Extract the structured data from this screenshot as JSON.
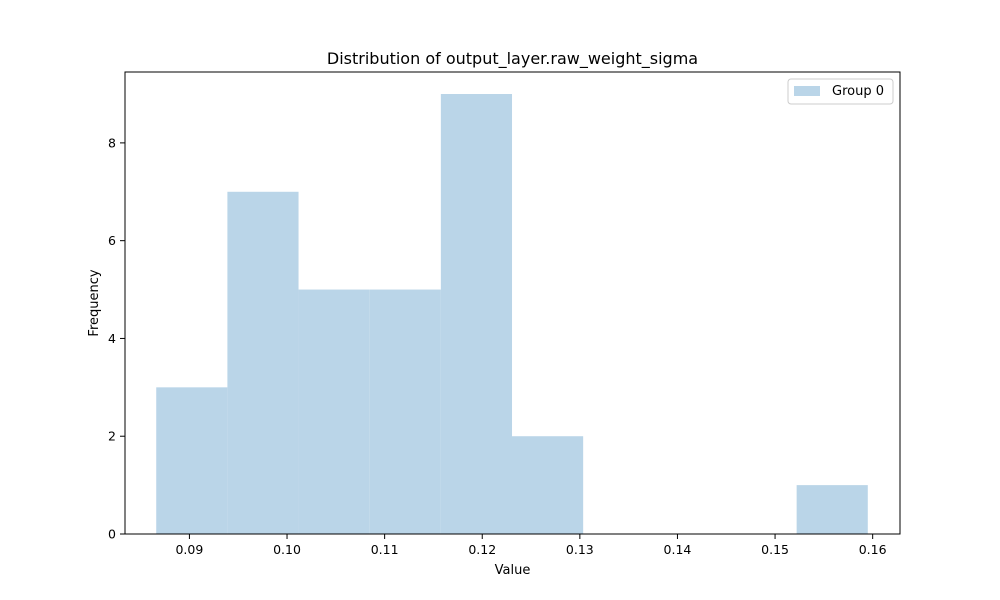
{
  "chart_data": {
    "type": "bar",
    "title": "Distribution of output_layer.raw_weight_sigma",
    "xlabel": "Value",
    "ylabel": "Frequency",
    "xlim": [
      0.0834,
      0.1628
    ],
    "ylim": [
      0,
      9.45
    ],
    "xticks": [
      0.09,
      0.1,
      0.11,
      0.12,
      0.13,
      0.14,
      0.15,
      0.16
    ],
    "xtick_labels": [
      "0.09",
      "0.10",
      "0.11",
      "0.12",
      "0.13",
      "0.14",
      "0.15",
      "0.16"
    ],
    "yticks": [
      0,
      2,
      4,
      6,
      8
    ],
    "ytick_labels": [
      "0",
      "2",
      "4",
      "6",
      "8"
    ],
    "bin_edges": [
      0.0866,
      0.09389,
      0.10118,
      0.10847,
      0.11576,
      0.12305,
      0.13034,
      0.13763,
      0.14492,
      0.15221,
      0.1595
    ],
    "series": [
      {
        "name": "Group 0",
        "color": "#bad5e8",
        "values": [
          3,
          7,
          5,
          5,
          9,
          2,
          0,
          0,
          0,
          1
        ]
      }
    ],
    "grid": false,
    "legend_position": "top-right"
  }
}
